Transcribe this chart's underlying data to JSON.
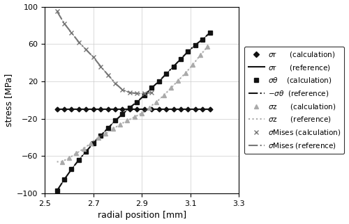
{
  "xlabel": "radial position [mm]",
  "ylabel": "stress [MPa]",
  "xlim": [
    2.5,
    3.3
  ],
  "ylim": [
    -100,
    100
  ],
  "xticks": [
    2.5,
    2.7,
    2.9,
    3.1,
    3.3
  ],
  "yticks": [
    -100,
    -60,
    -20,
    20,
    60,
    100
  ],
  "sigma_r_calc_x": [
    2.55,
    2.58,
    2.61,
    2.64,
    2.67,
    2.7,
    2.73,
    2.76,
    2.79,
    2.82,
    2.85,
    2.88,
    2.91,
    2.94,
    2.97,
    3.0,
    3.03,
    3.06,
    3.09,
    3.12,
    3.15,
    3.18
  ],
  "sigma_r_calc_y": [
    -10,
    -10,
    -10,
    -10,
    -10,
    -10,
    -10,
    -10,
    -10,
    -10,
    -10,
    -10,
    -10,
    -10,
    -10,
    -10,
    -10,
    -10,
    -10,
    -10,
    -10,
    -10
  ],
  "sigma_theta_calc_x": [
    2.55,
    2.58,
    2.61,
    2.64,
    2.67,
    2.7,
    2.73,
    2.76,
    2.79,
    2.82,
    2.85,
    2.88,
    2.91,
    2.94,
    2.97,
    3.0,
    3.03,
    3.06,
    3.09,
    3.12,
    3.15,
    3.18
  ],
  "sigma_theta_calc_y": [
    -97,
    -85,
    -74,
    -64,
    -55,
    -46,
    -38,
    -30,
    -22,
    -15,
    -8,
    -2,
    5,
    13,
    20,
    28,
    36,
    44,
    52,
    59,
    65,
    72
  ],
  "sigma_z_calc_x": [
    2.57,
    2.6,
    2.63,
    2.66,
    2.69,
    2.72,
    2.75,
    2.78,
    2.81,
    2.84,
    2.87,
    2.9,
    2.93,
    2.96,
    2.99,
    3.02,
    3.05,
    3.08,
    3.11,
    3.14,
    3.17
  ],
  "sigma_z_calc_y": [
    -66,
    -62,
    -57,
    -52,
    -46,
    -40,
    -36,
    -31,
    -26,
    -22,
    -18,
    -14,
    -8,
    -2,
    5,
    13,
    21,
    29,
    38,
    48,
    57
  ],
  "sigma_mises_calc_x": [
    2.55,
    2.58,
    2.61,
    2.64,
    2.67,
    2.7,
    2.73,
    2.76,
    2.79,
    2.82,
    2.85,
    2.88,
    2.91,
    2.94
  ],
  "sigma_mises_calc_y": [
    95,
    82,
    72,
    62,
    54,
    46,
    36,
    27,
    18,
    11,
    8,
    7,
    7,
    8
  ],
  "color_dark": "#111111",
  "color_gray": "#777777",
  "color_light_gray": "#aaaaaa"
}
